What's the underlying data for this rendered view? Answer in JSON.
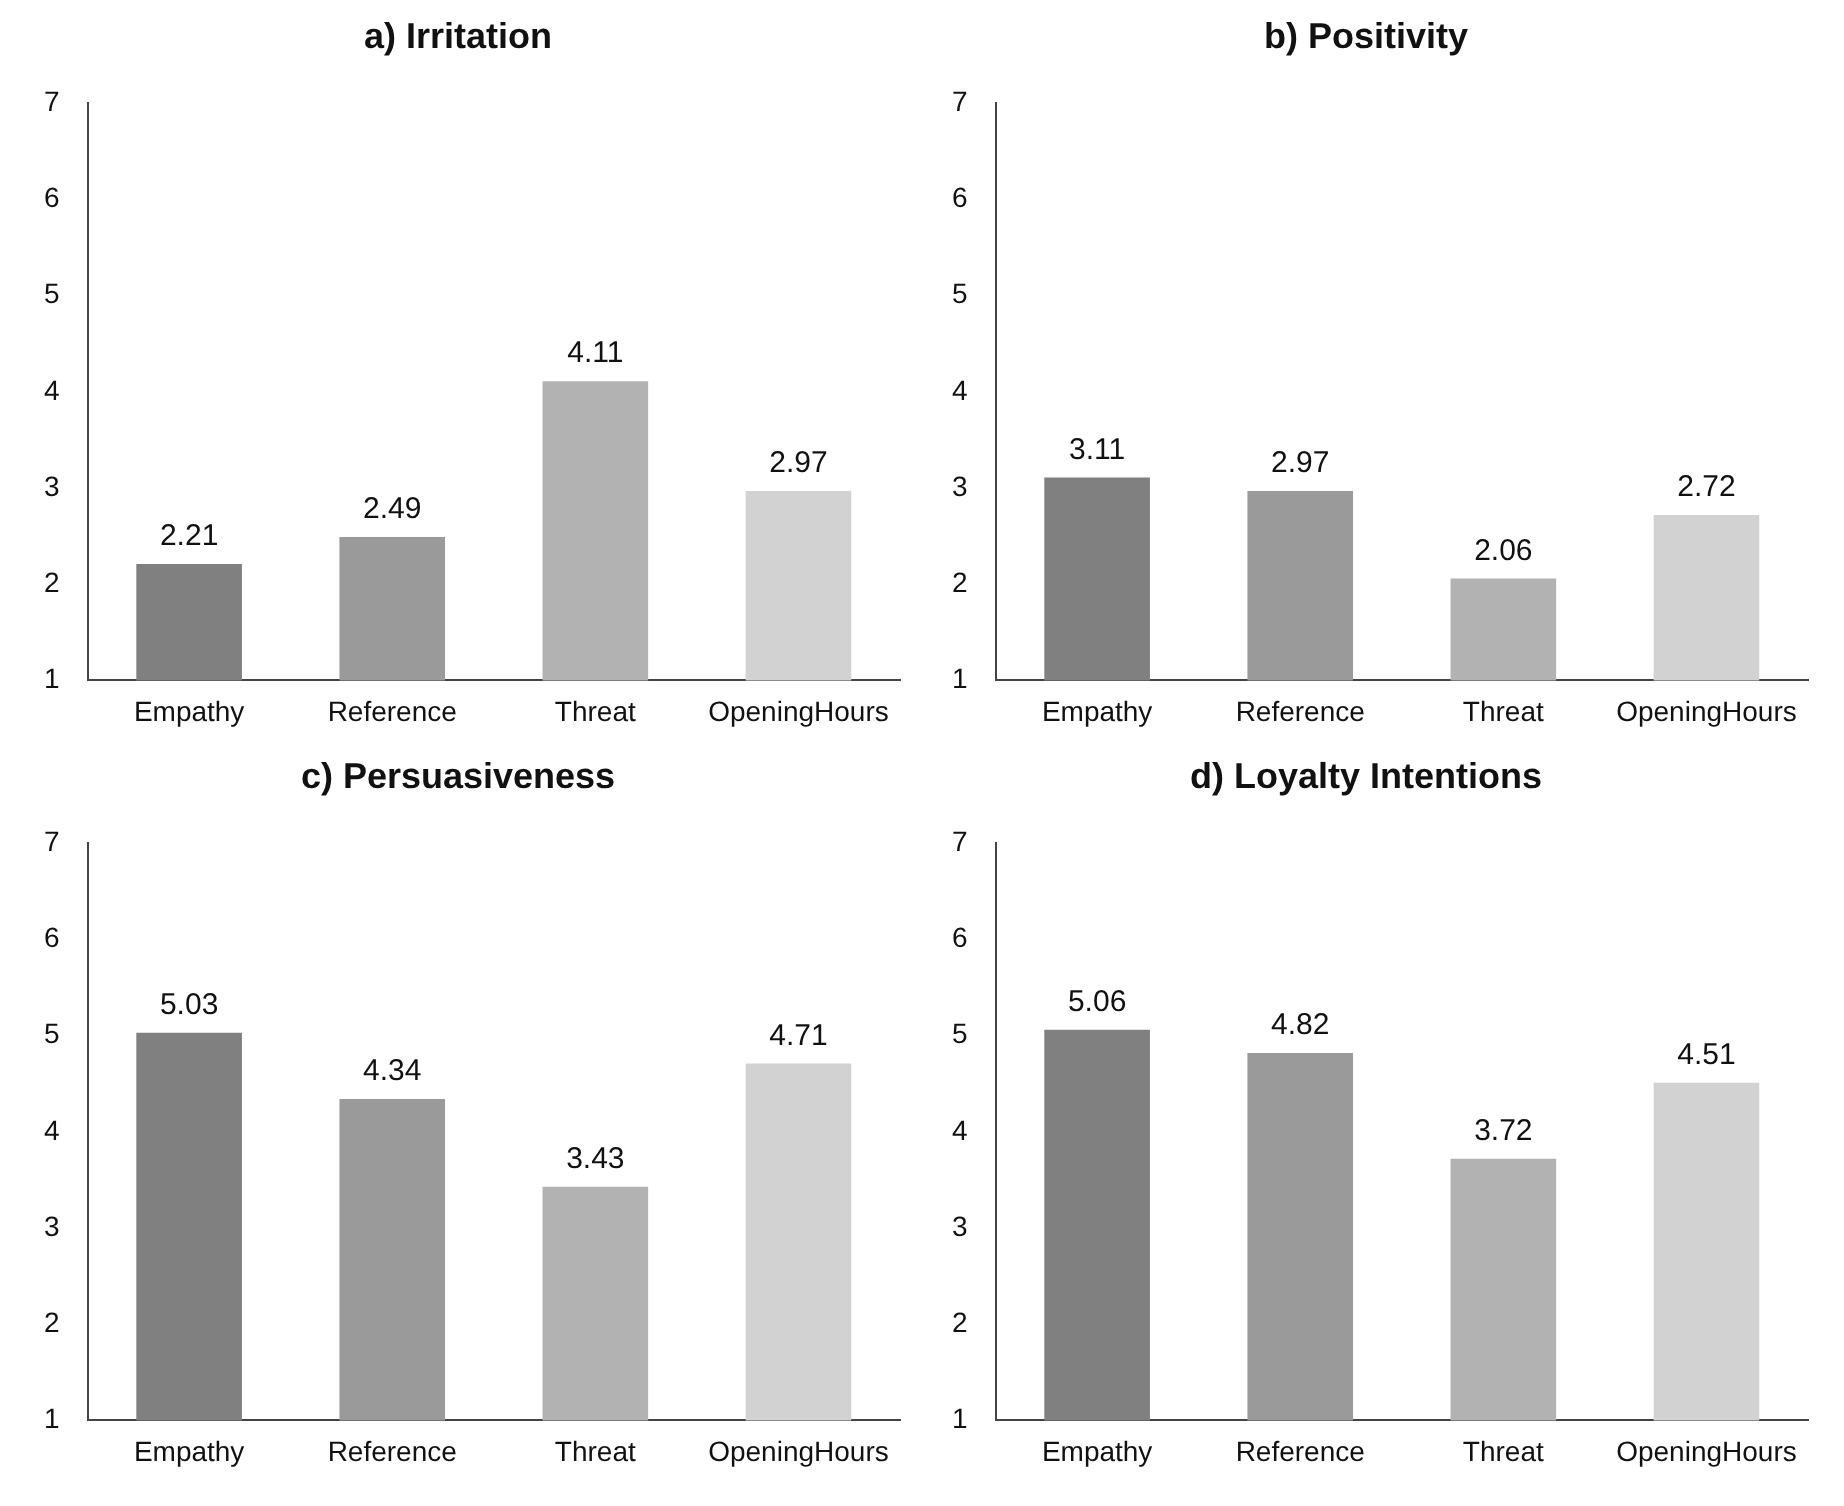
{
  "chart_data": [
    {
      "type": "bar",
      "title": "a) Irritation",
      "categories": [
        "Empathy",
        "Reference",
        "Threat",
        "OpeningHours"
      ],
      "values": [
        2.21,
        2.49,
        4.11,
        2.97
      ],
      "colors": [
        "#808080",
        "#9a9a9a",
        "#b2b2b2",
        "#d2d2d2"
      ],
      "ylim": [
        1,
        7
      ],
      "yticks": [
        1,
        2,
        3,
        4,
        5,
        6,
        7
      ],
      "data_labels": true,
      "grid": false,
      "legend": false
    },
    {
      "type": "bar",
      "title": "b) Positivity",
      "categories": [
        "Empathy",
        "Reference",
        "Threat",
        "OpeningHours"
      ],
      "values": [
        3.11,
        2.97,
        2.06,
        2.72
      ],
      "colors": [
        "#808080",
        "#9a9a9a",
        "#b2b2b2",
        "#d2d2d2"
      ],
      "ylim": [
        1,
        7
      ],
      "yticks": [
        1,
        2,
        3,
        4,
        5,
        6,
        7
      ],
      "data_labels": true,
      "grid": false,
      "legend": false
    },
    {
      "type": "bar",
      "title": "c) Persuasiveness",
      "categories": [
        "Empathy",
        "Reference",
        "Threat",
        "OpeningHours"
      ],
      "values": [
        5.03,
        4.34,
        3.43,
        4.71
      ],
      "colors": [
        "#808080",
        "#9a9a9a",
        "#b2b2b2",
        "#d2d2d2"
      ],
      "ylim": [
        1,
        7
      ],
      "yticks": [
        1,
        2,
        3,
        4,
        5,
        6,
        7
      ],
      "data_labels": true,
      "grid": false,
      "legend": false
    },
    {
      "type": "bar",
      "title": "d) Loyalty Intentions",
      "categories": [
        "Empathy",
        "Reference",
        "Threat",
        "OpeningHours"
      ],
      "values": [
        5.06,
        4.82,
        3.72,
        4.51
      ],
      "colors": [
        "#808080",
        "#9a9a9a",
        "#b2b2b2",
        "#d2d2d2"
      ],
      "ylim": [
        1,
        7
      ],
      "yticks": [
        1,
        2,
        3,
        4,
        5,
        6,
        7
      ],
      "data_labels": true,
      "grid": false,
      "legend": false
    }
  ]
}
